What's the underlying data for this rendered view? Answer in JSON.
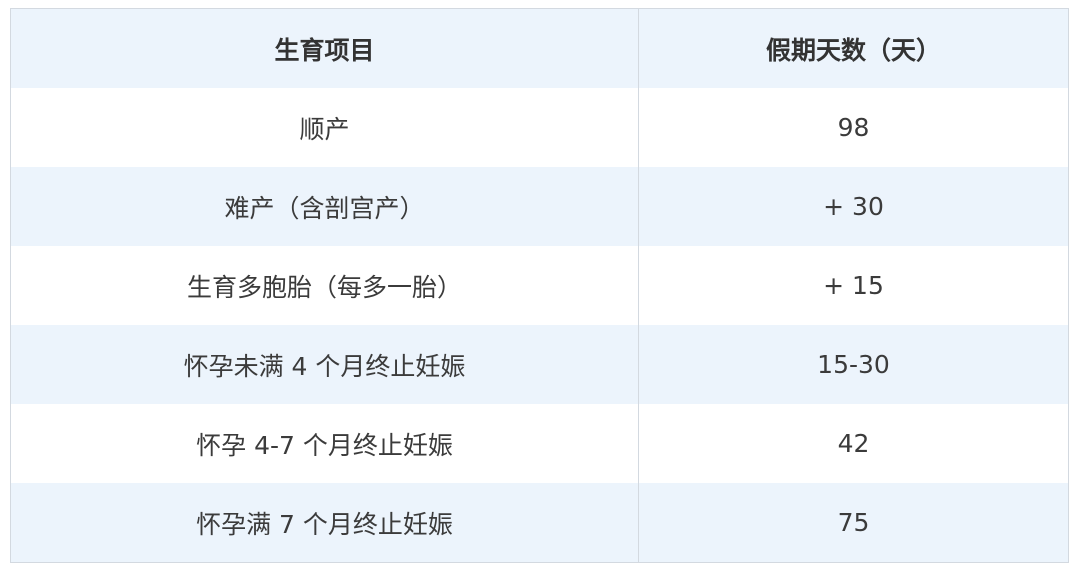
{
  "table": {
    "headers": [
      "生育项目",
      "假期天数（天）"
    ],
    "rows": [
      [
        "顺产",
        "98"
      ],
      [
        "难产（含剖宫产）",
        "+ 30"
      ],
      [
        "生育多胞胎（每多一胎）",
        "+ 15"
      ],
      [
        "怀孕未满 4 个月终止妊娠",
        "15-30"
      ],
      [
        "怀孕 4-7 个月终止妊娠",
        "42"
      ],
      [
        "怀孕满 7 个月终止妊娠",
        "75"
      ]
    ]
  },
  "colors": {
    "header_bg": "#ecf4fc",
    "stripe_bg": "#ecf4fc",
    "border": "#d3d9e0",
    "text": "#3b3b3b"
  }
}
